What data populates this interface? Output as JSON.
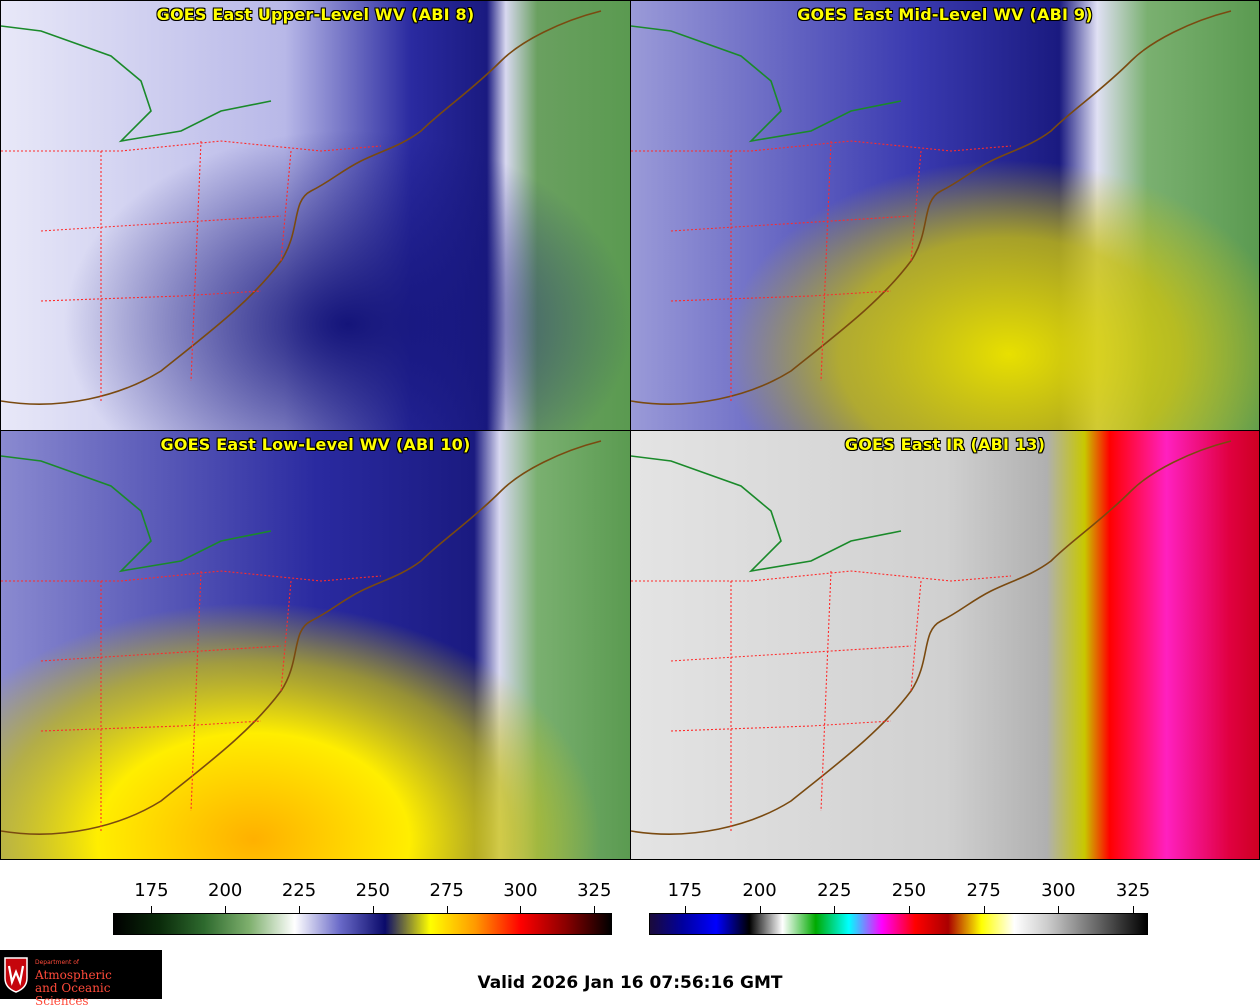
{
  "panels": [
    {
      "title": "GOES East Upper-Level WV (ABI 8)",
      "colorscale": "wv"
    },
    {
      "title": "GOES East Mid-Level WV (ABI 9)",
      "colorscale": "wv"
    },
    {
      "title": "GOES East Low-Level WV (ABI 10)",
      "colorscale": "wv"
    },
    {
      "title": "GOES East IR (ABI 13)",
      "colorscale": "ir"
    }
  ],
  "colorbars": [
    {
      "ticks": [
        "175",
        "200",
        "225",
        "250",
        "275",
        "300",
        "325"
      ],
      "range": [
        162,
        331
      ],
      "stops": [
        "#000000",
        "#0a2a0a",
        "#2e6a2e",
        "#7fb06e",
        "#ffffff",
        "#6a6ac8",
        "#0a0a6a",
        "#ffff00",
        "#ff9900",
        "#ff0000",
        "#8a0000",
        "#000000"
      ]
    },
    {
      "ticks": [
        "175",
        "200",
        "225",
        "250",
        "275",
        "300",
        "325"
      ],
      "range": [
        163,
        330
      ],
      "stops": [
        "#1a0a3a",
        "#0000a0",
        "#0000ff",
        "#000000",
        "#ffffff",
        "#00aa00",
        "#00ffff",
        "#ff00ff",
        "#ff0000",
        "#aa0000",
        "#ffff00",
        "#ffffff",
        "#cccccc",
        "#888888",
        "#444444",
        "#000000"
      ]
    }
  ],
  "valid_time": "Valid 2026 Jan 16 07:56:16 GMT",
  "logo": {
    "dept": "Department of",
    "line1": "Atmospheric",
    "line2": "and Oceanic Sciences"
  },
  "colors": {
    "title": "#ffff00",
    "coast": "#7a4a10",
    "state": "#ff2a2a",
    "border": "#1a8a2a"
  }
}
